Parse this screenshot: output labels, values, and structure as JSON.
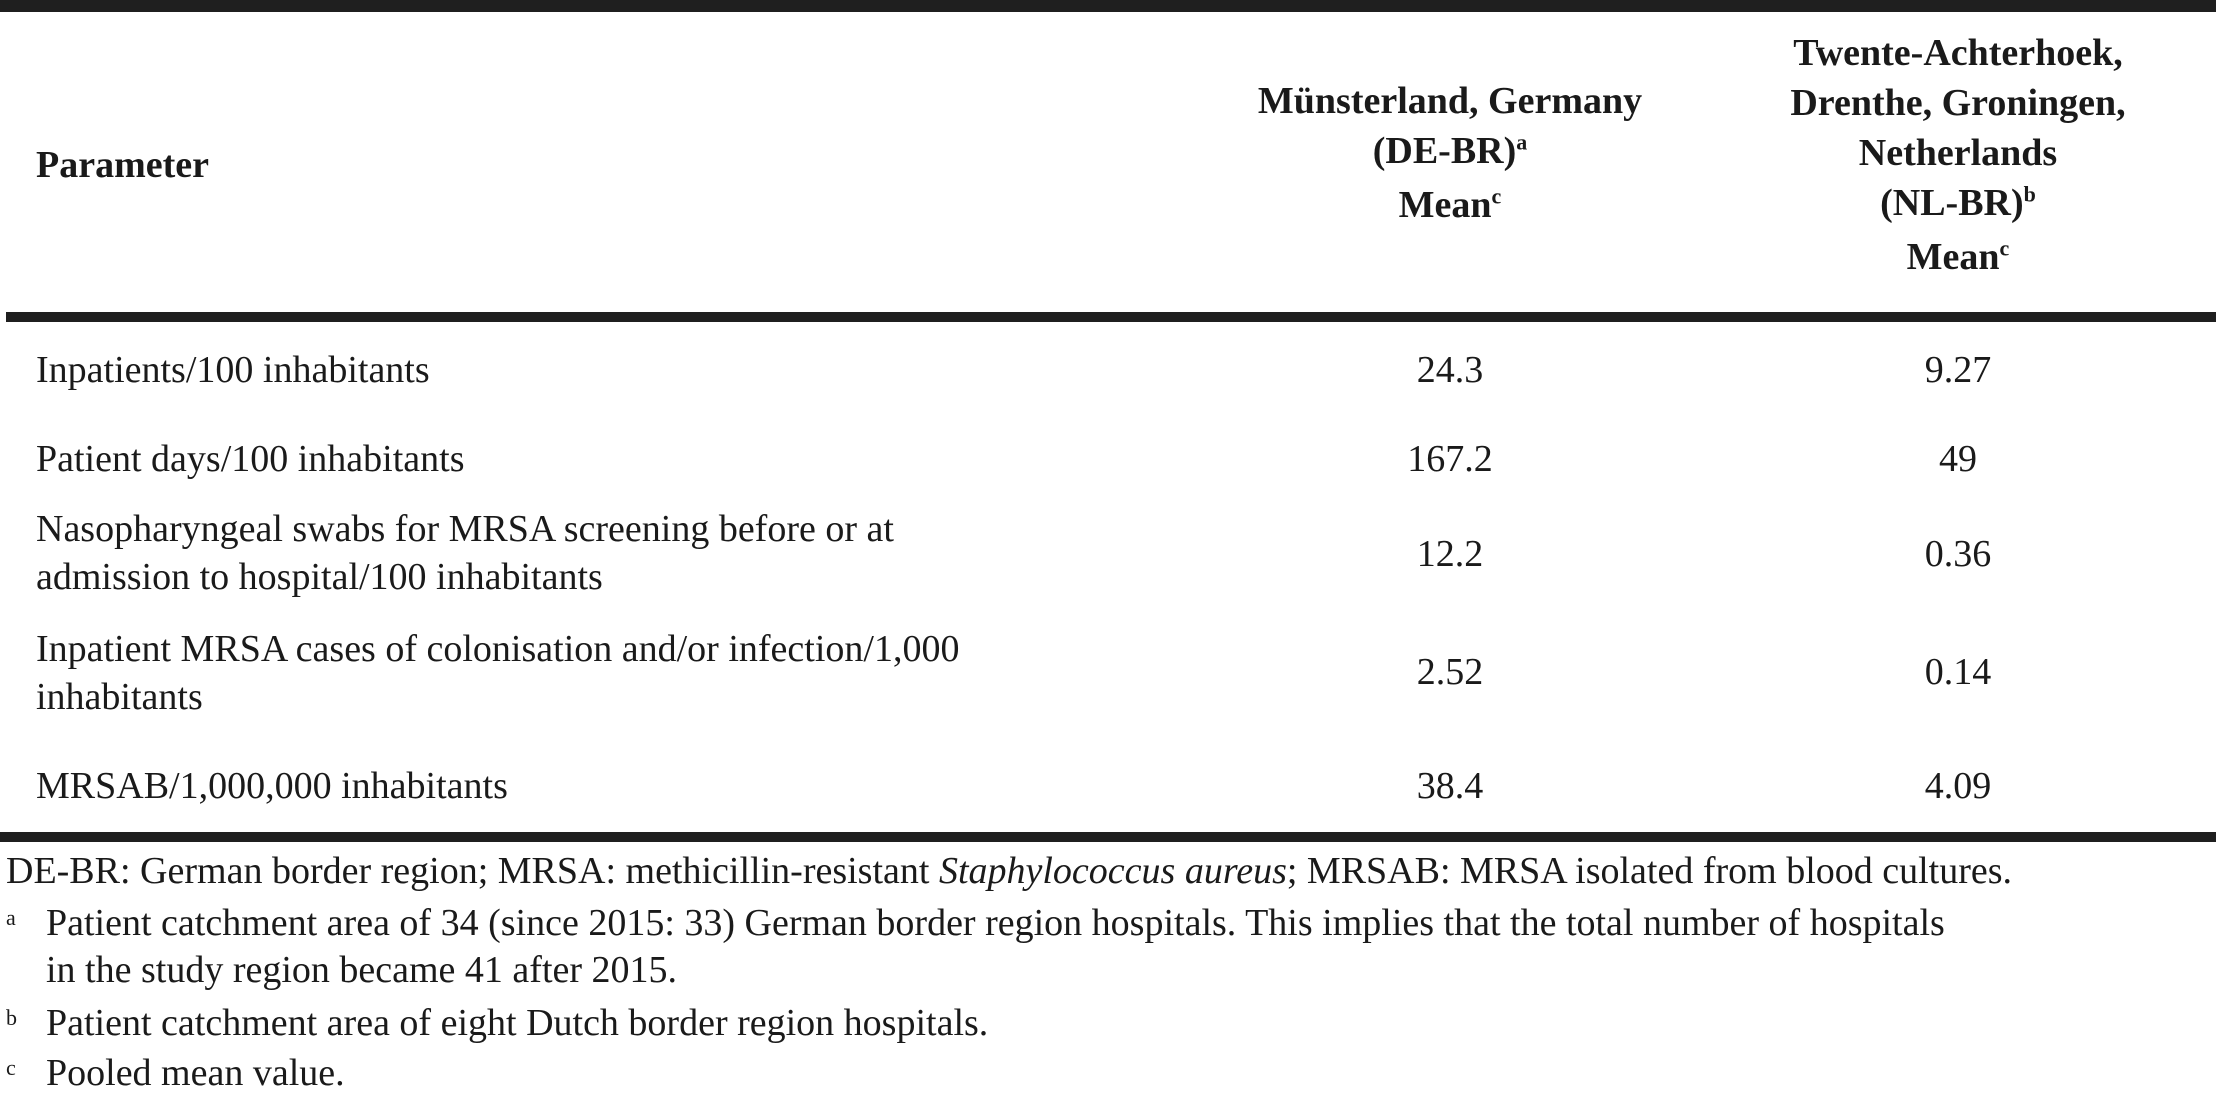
{
  "table": {
    "headers": {
      "parameter": "Parameter",
      "de_region_line1": "Münsterland, Germany",
      "de_region_line2": "(DE-BR)",
      "de_region_sup": "a",
      "de_stat": "Mean",
      "de_stat_sup": "c",
      "nl_region_line1": "Twente-Achterhoek,",
      "nl_region_line2": "Drenthe, Groningen,",
      "nl_region_line3": "Netherlands",
      "nl_region_line4": "(NL-BR)",
      "nl_region_sup": "b",
      "nl_stat": "Mean",
      "nl_stat_sup": "c"
    },
    "rows": [
      {
        "param_line1": "Inpatients/100 inhabitants",
        "param_line2": "",
        "de": "24.3",
        "nl": "9.27"
      },
      {
        "param_line1": "Patient days/100 inhabitants",
        "param_line2": "",
        "de": "167.2",
        "nl": "49"
      },
      {
        "param_line1": "Nasopharyngeal swabs for MRSA screening before or at",
        "param_line2": "admission to hospital/100 inhabitants",
        "de": "12.2",
        "nl": "0.36"
      },
      {
        "param_line1": "Inpatient MRSA cases of colonisation and/or infection/1,000",
        "param_line2": "inhabitants",
        "de": "2.52",
        "nl": "0.14"
      },
      {
        "param_line1": "MRSAB/1,000,000 inhabitants",
        "param_line2": "",
        "de": "38.4",
        "nl": "4.09"
      }
    ]
  },
  "footnotes": {
    "abbrev_part1": "DE-BR: German border region; MRSA: methicillin-resistant ",
    "abbrev_italic": "Staphylococcus aureus",
    "abbrev_part2": "; MRSAB: MRSA isolated from blood cultures.",
    "notes": [
      {
        "mark": "a",
        "line1": "Patient catchment area of 34 (since 2015: 33) German border region hospitals. This implies that the total number of hospitals",
        "line2": "in the study region became 41 after 2015."
      },
      {
        "mark": "b",
        "line1": "Patient catchment area of eight Dutch border region hospitals.",
        "line2": ""
      },
      {
        "mark": "c",
        "line1": "Pooled mean value.",
        "line2": ""
      }
    ]
  }
}
